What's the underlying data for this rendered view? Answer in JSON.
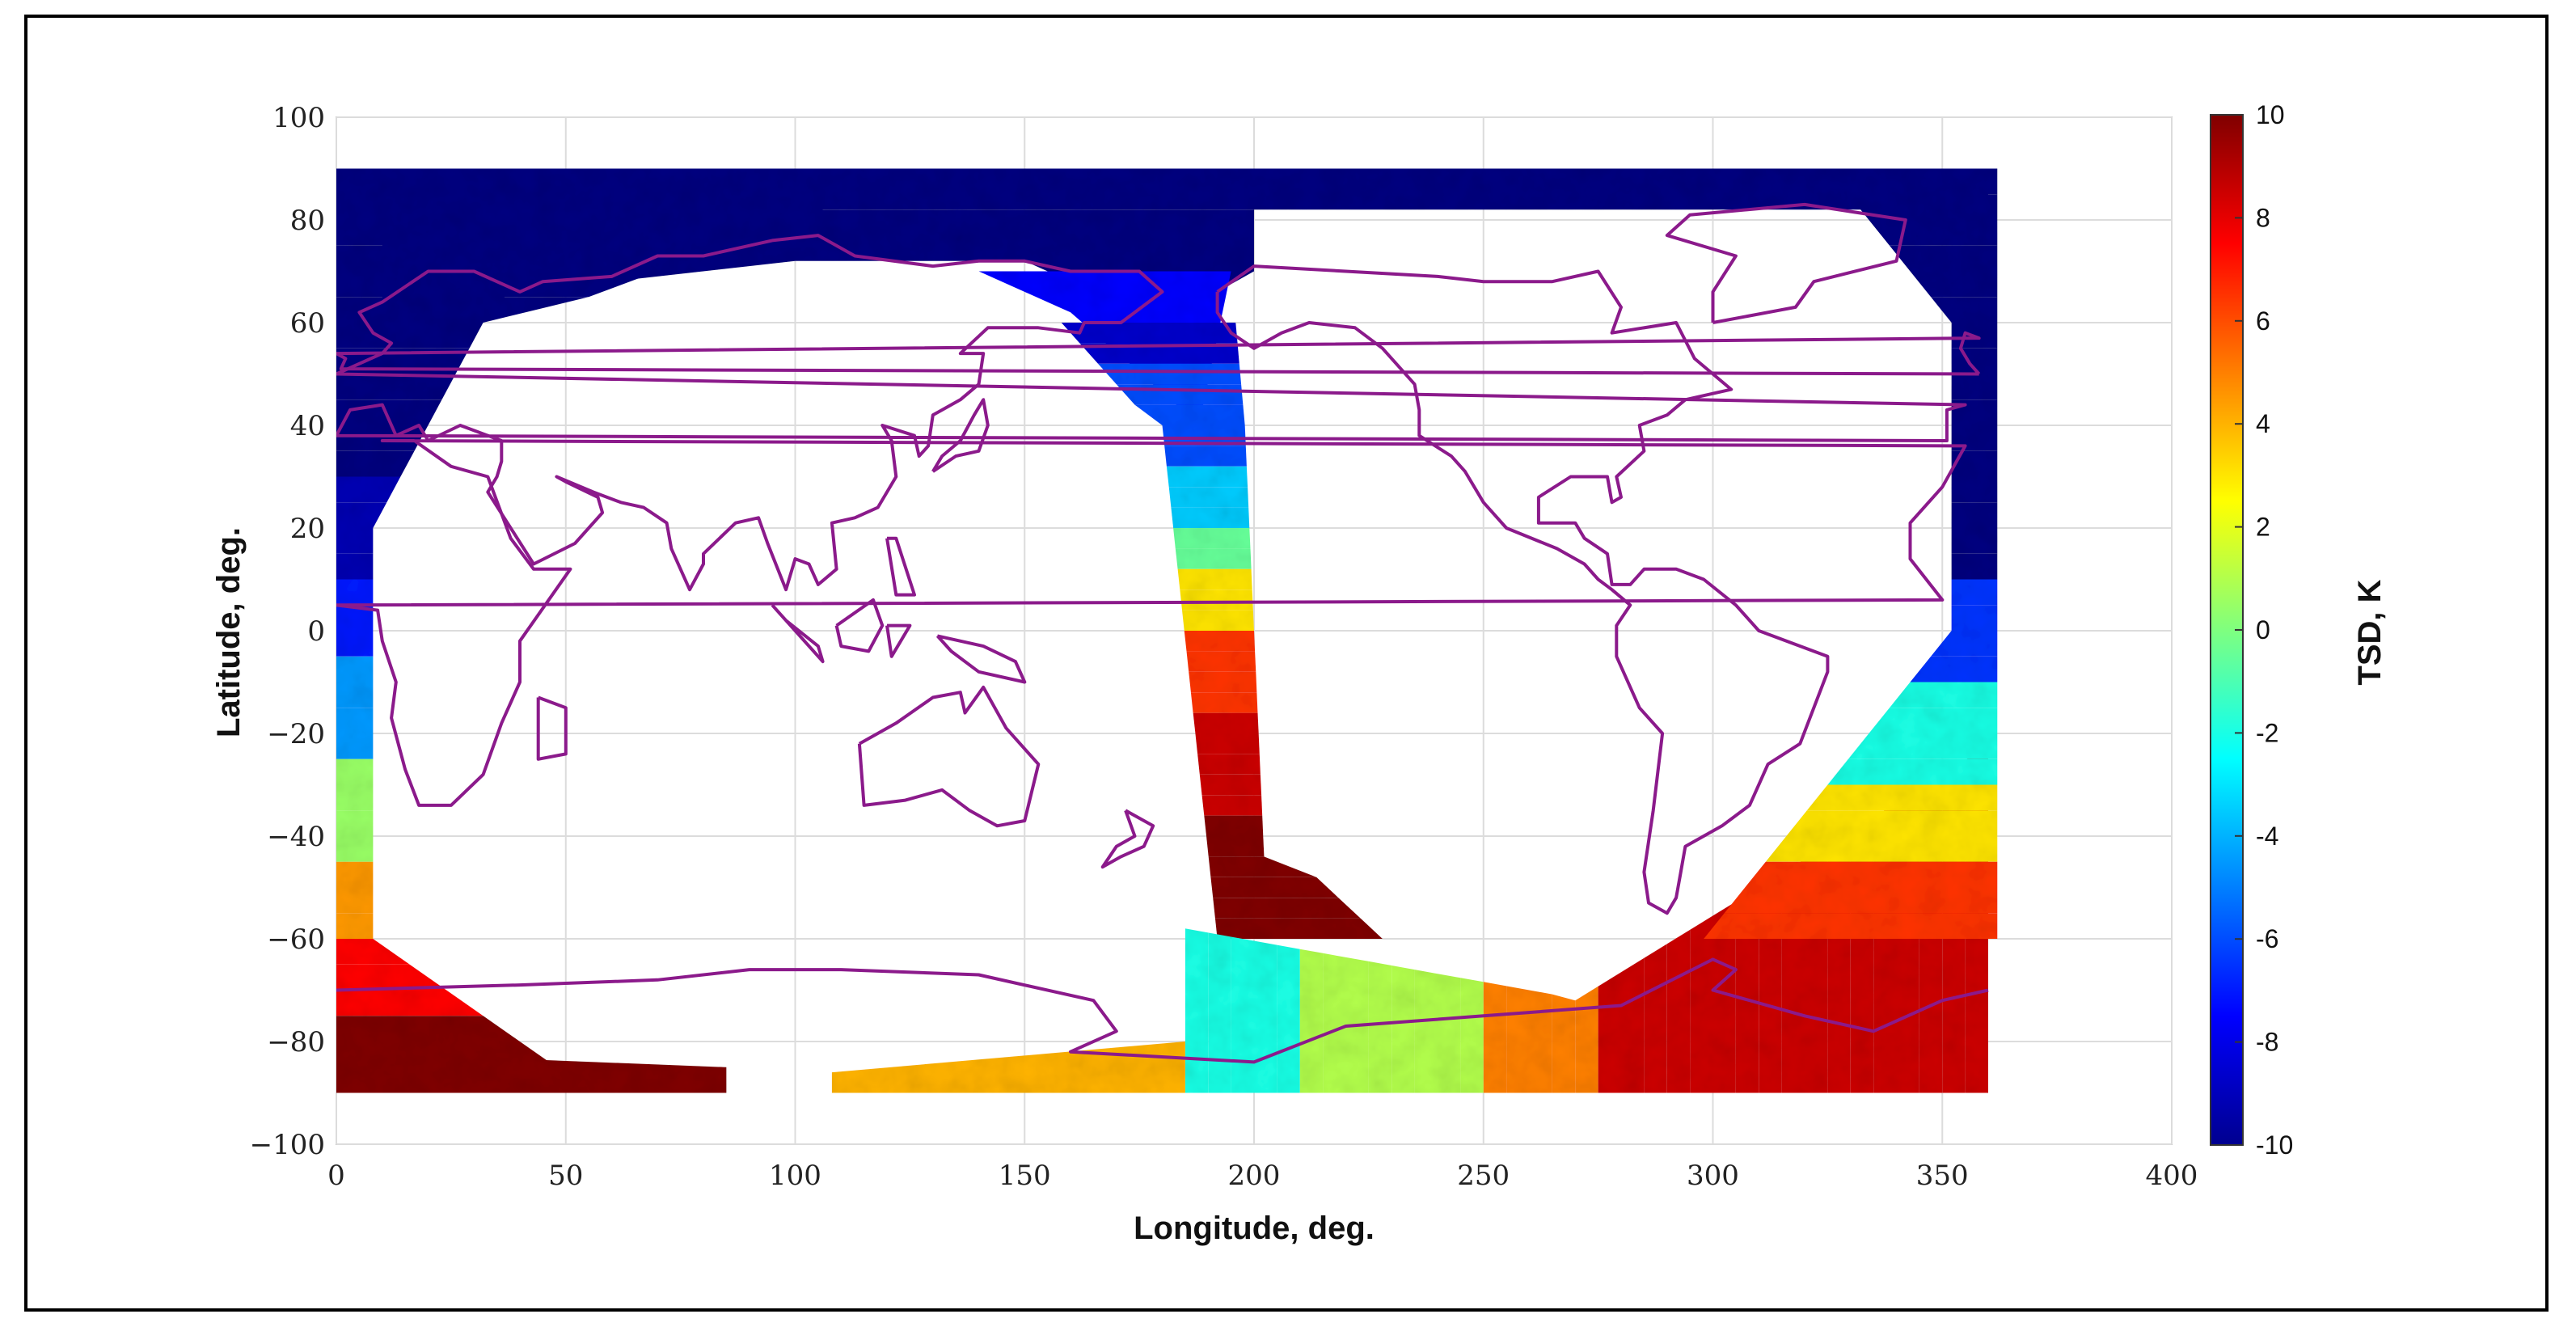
{
  "chart_data": {
    "type": "scatter",
    "title": "",
    "xlabel": "Longitude, deg.",
    "ylabel": "Latitude, deg.",
    "xlim": [
      0,
      400
    ],
    "ylim": [
      -100,
      100
    ],
    "xticks": [
      0,
      50,
      100,
      150,
      200,
      250,
      300,
      350,
      400
    ],
    "yticks": [
      -100,
      -80,
      -60,
      -40,
      -20,
      0,
      20,
      40,
      60,
      80,
      100
    ],
    "grid": true,
    "colorbar": {
      "label": "TSD, K",
      "clim": [
        -10,
        10
      ],
      "ticks": [
        -10,
        -8,
        -6,
        -4,
        -2,
        0,
        2,
        4,
        6,
        8,
        10
      ],
      "colormap": "jet"
    },
    "overlay": "coastlines",
    "coastline_color": "#8b1a8b",
    "series": [
      {
        "values_description_excluded": true,
        "points": [
          {
            "lon": 10,
            "lat": 85,
            "tsd": -10
          },
          {
            "lon": 30,
            "lat": 60,
            "tsd": -10
          },
          {
            "lon": 5,
            "lat": 40,
            "tsd": -10
          },
          {
            "lon": 5,
            "lat": 20,
            "tsd": -9
          },
          {
            "lon": 5,
            "lat": 0,
            "tsd": -7
          },
          {
            "lon": 5,
            "lat": -20,
            "tsd": -4
          },
          {
            "lon": 5,
            "lat": -40,
            "tsd": 1
          },
          {
            "lon": 5,
            "lat": -60,
            "tsd": 5
          },
          {
            "lon": 10,
            "lat": -80,
            "tsd": 9
          },
          {
            "lon": 40,
            "lat": -87,
            "tsd": 10
          },
          {
            "lon": 120,
            "lat": 80,
            "tsd": -10
          },
          {
            "lon": 160,
            "lat": 70,
            "tsd": -8
          },
          {
            "lon": 170,
            "lat": 50,
            "tsd": -7
          },
          {
            "lon": 180,
            "lat": 30,
            "tsd": -4
          },
          {
            "lon": 182,
            "lat": 10,
            "tsd": 1
          },
          {
            "lon": 185,
            "lat": -10,
            "tsd": 5
          },
          {
            "lon": 190,
            "lat": -30,
            "tsd": 8
          },
          {
            "lon": 200,
            "lat": -50,
            "tsd": 10
          },
          {
            "lon": 190,
            "lat": -65,
            "tsd": -2
          },
          {
            "lon": 220,
            "lat": -70,
            "tsd": 0
          },
          {
            "lon": 250,
            "lat": -80,
            "tsd": 6
          },
          {
            "lon": 300,
            "lat": -80,
            "tsd": 9
          },
          {
            "lon": 330,
            "lat": -60,
            "tsd": 7
          },
          {
            "lon": 350,
            "lat": -40,
            "tsd": 3
          },
          {
            "lon": 355,
            "lat": -20,
            "tsd": -2
          },
          {
            "lon": 355,
            "lat": 0,
            "tsd": -6
          },
          {
            "lon": 358,
            "lat": 40,
            "tsd": -10
          },
          {
            "lon": 330,
            "lat": 87,
            "tsd": -10
          },
          {
            "lon": 130,
            "lat": -88,
            "tsd": 3
          },
          {
            "lon": 230,
            "lat": -88,
            "tsd": 5
          }
        ]
      }
    ]
  }
}
